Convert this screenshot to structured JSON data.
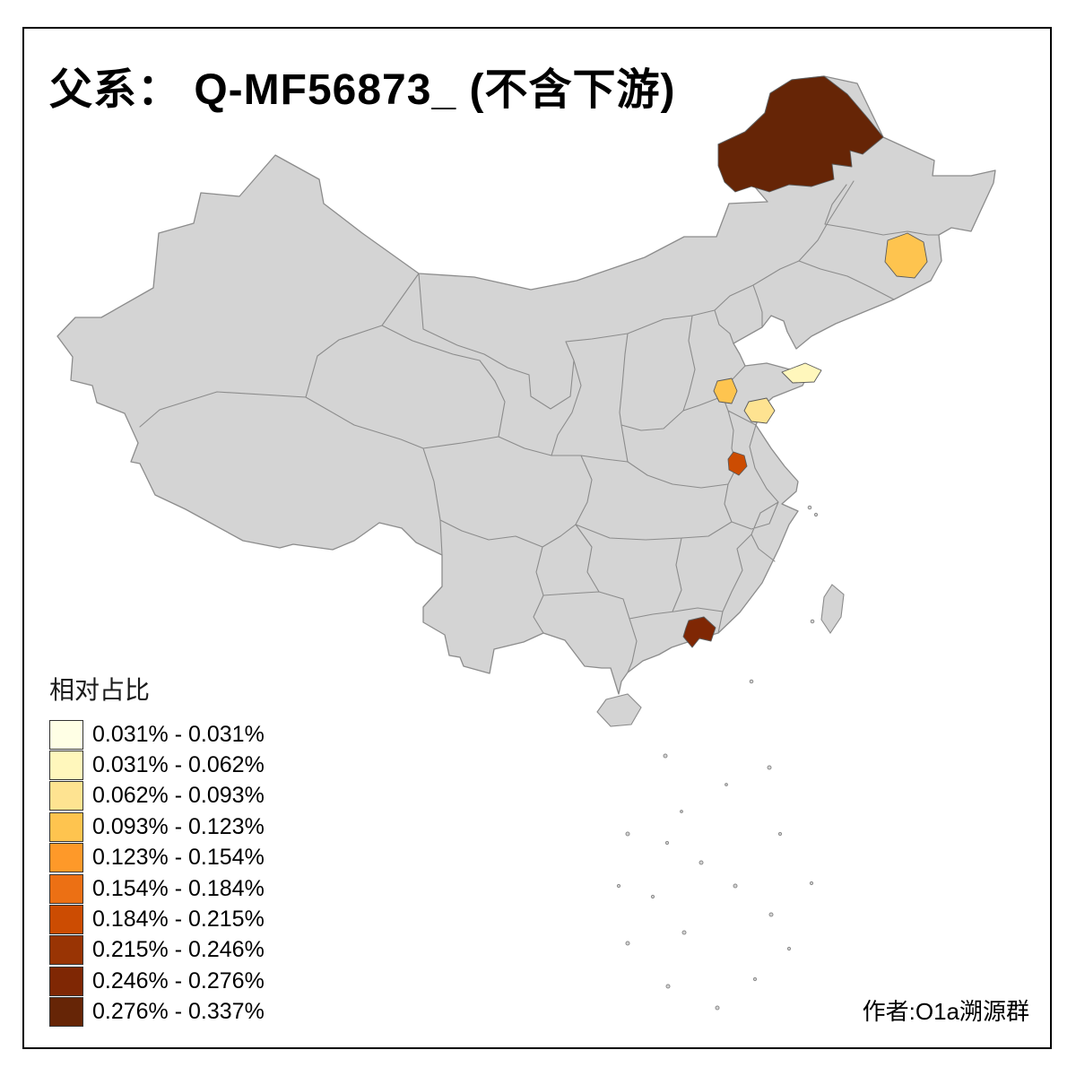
{
  "title": {
    "text": "父系： Q-MF56873_ (不含下游)"
  },
  "legend": {
    "title": "相对占比",
    "items": [
      {
        "range": "0.031% - 0.031%",
        "color": "#FFFFE5"
      },
      {
        "range": "0.031% - 0.062%",
        "color": "#FFF7BC"
      },
      {
        "range": "0.062% - 0.093%",
        "color": "#FEE391"
      },
      {
        "range": "0.093% - 0.123%",
        "color": "#FEC44F"
      },
      {
        "range": "0.123% - 0.154%",
        "color": "#FE9929"
      },
      {
        "range": "0.154% - 0.184%",
        "color": "#EC7014"
      },
      {
        "range": "0.184% - 0.215%",
        "color": "#CC4C02"
      },
      {
        "range": "0.215% - 0.246%",
        "color": "#993404"
      },
      {
        "range": "0.246% - 0.276%",
        "color": "#7F2704"
      },
      {
        "range": "0.276% - 0.337%",
        "color": "#662506"
      }
    ]
  },
  "credit": {
    "text": "作者:O1a溯源群"
  },
  "map": {
    "base_fill": "#d4d4d4",
    "border_color": "#8c8c8c",
    "background": "#ffffff",
    "regions": [
      {
        "id": "region-northeast-large",
        "color_index": 9
      },
      {
        "id": "region-heilongjiang-east",
        "color_index": 3
      },
      {
        "id": "region-shandong-peninsula",
        "color_index": 1
      },
      {
        "id": "region-hebei-south",
        "color_index": 3
      },
      {
        "id": "region-shandong-west",
        "color_index": 2
      },
      {
        "id": "region-henan-central",
        "color_index": 6
      },
      {
        "id": "region-guangdong-east",
        "color_index": 8
      }
    ]
  }
}
